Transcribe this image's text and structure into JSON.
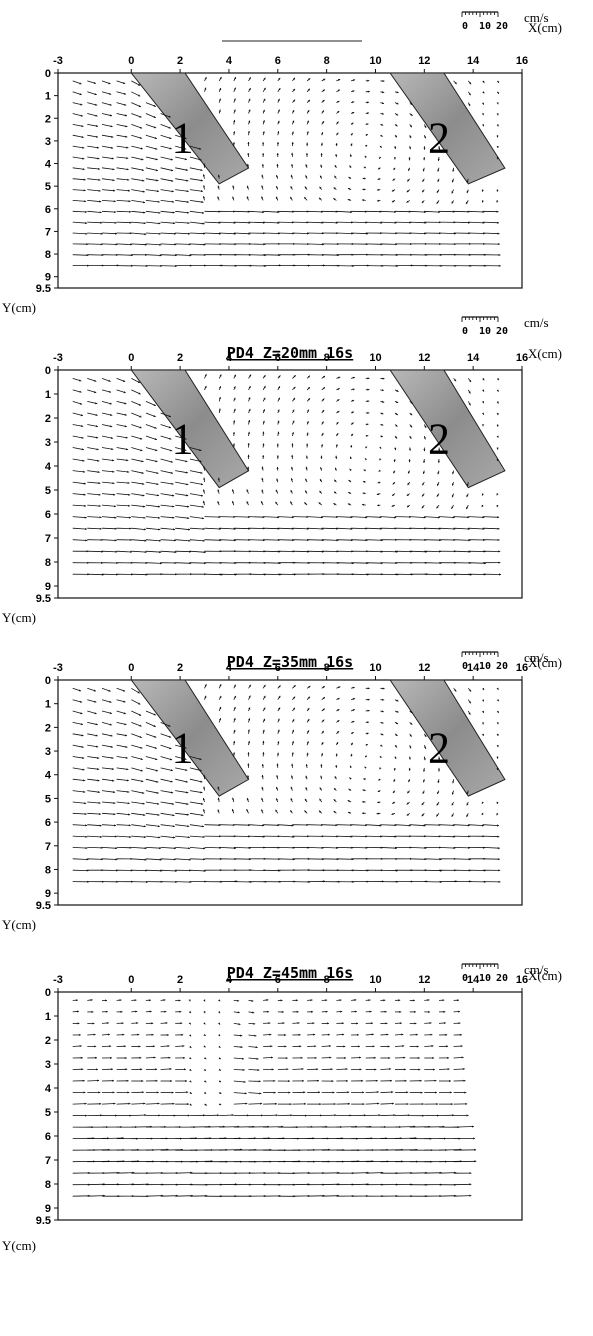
{
  "figure": {
    "x_axis_label": "X(cm)",
    "y_axis_label": "Y(cm)",
    "scale": {
      "ticks": [
        "0",
        "10",
        "20"
      ],
      "unit": "cm/s"
    },
    "x_ticks": [
      "-3",
      "0",
      "2",
      "4",
      "6",
      "8",
      "10",
      "12",
      "14",
      "16"
    ],
    "y_ticks": [
      "0",
      "1",
      "2",
      "3",
      "4",
      "5",
      "6",
      "7",
      "8",
      "9",
      "9.5"
    ],
    "plate_labels": [
      "1",
      "2"
    ],
    "colors": {
      "vector": "#111111",
      "plate_fill": "#9a9a9a",
      "frame": "#111111"
    }
  },
  "panels": [
    {
      "title": "",
      "plates": [
        "1",
        "2"
      ],
      "flow": "deflect"
    },
    {
      "title": "PD4  Z=20mm  16s",
      "plates": [
        "1",
        "2"
      ],
      "flow": "deflect"
    },
    {
      "title": "PD4  Z=35mm  16s",
      "plates": [
        "1",
        "2"
      ],
      "flow": "deflect"
    },
    {
      "title": "PD4  Z=45mm  16s",
      "plates": [],
      "flow": "free"
    }
  ]
}
